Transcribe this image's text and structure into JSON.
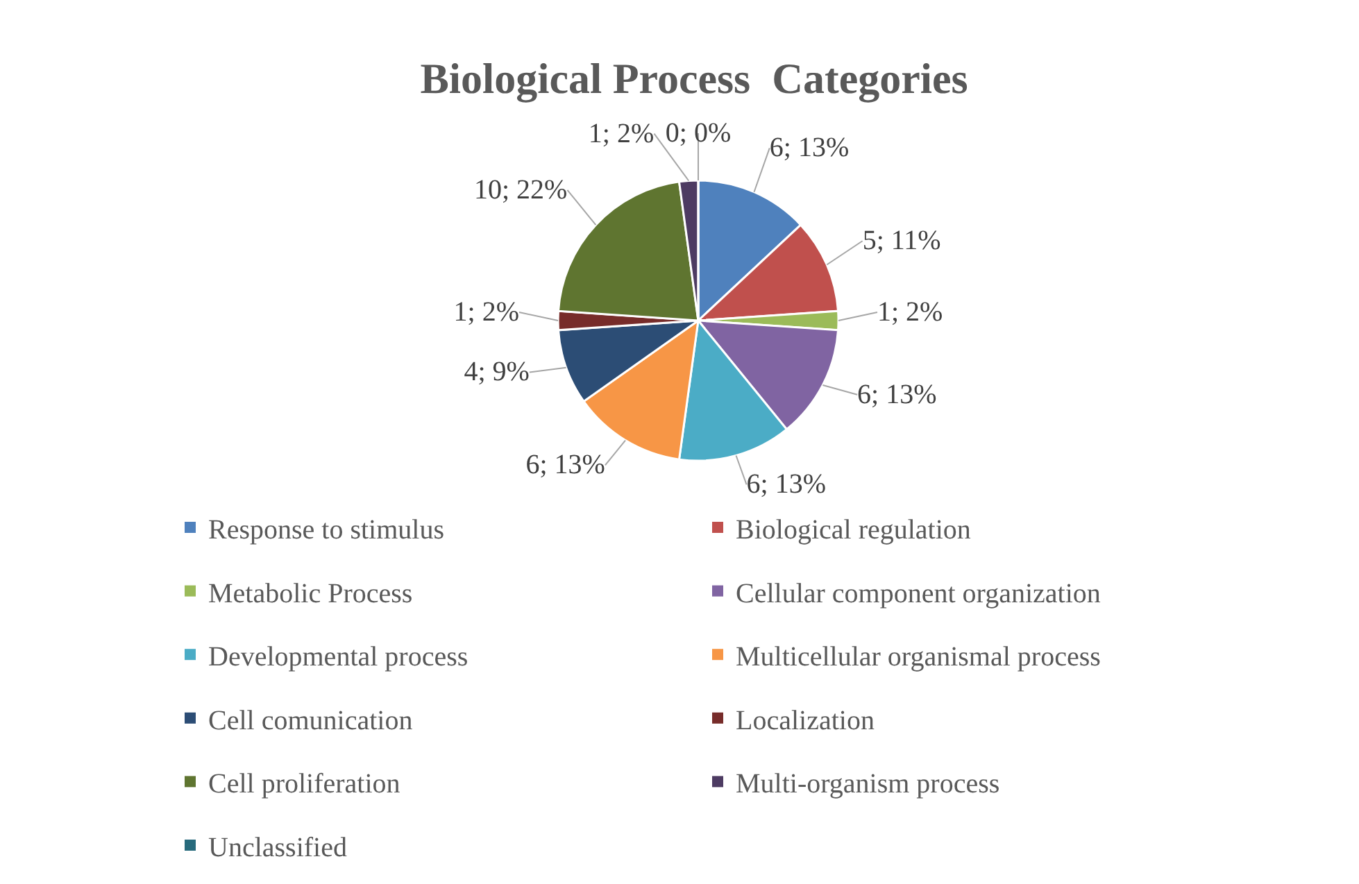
{
  "chart_data": {
    "type": "pie",
    "title": "Biological Process  Categories",
    "categories": [
      "Response to stimulus",
      "Biological regulation",
      "Metabolic Process",
      "Cellular component organization",
      "Developmental process",
      "Multicellular organismal process",
      "Cell comunication",
      "Localization",
      "Cell proliferation",
      "Multi-organism process",
      "Unclassified"
    ],
    "values": [
      6,
      5,
      1,
      6,
      6,
      6,
      4,
      1,
      10,
      1,
      0
    ],
    "value_labels": [
      "6; 13%",
      "5; 11%",
      "1; 2%",
      "6; 13%",
      "6; 13%",
      "6; 13%",
      "4; 9%",
      "1; 2%",
      "10; 22%",
      "1; 2%",
      "0; 0%"
    ],
    "colors": [
      "#4f81bd",
      "#c0504d",
      "#9bbb59",
      "#8064a2",
      "#4bacc6",
      "#f79646",
      "#2c4d75",
      "#772c2a",
      "#5f7530",
      "#4d3b62",
      "#276a7c"
    ],
    "legend": "bottom"
  }
}
